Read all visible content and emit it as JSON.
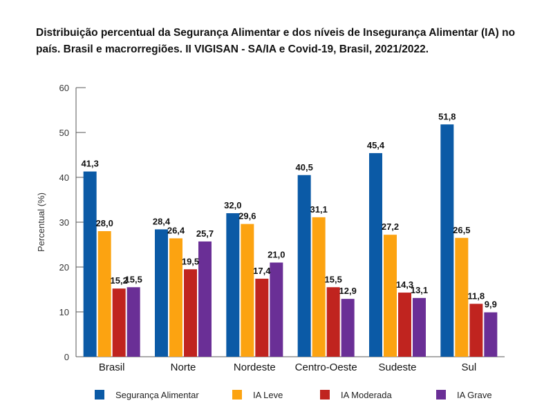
{
  "chart_data": {
    "type": "bar",
    "title": "Distribuição percentual da Segurança Alimentar e dos níveis de Insegurança Alimentar (IA) no país. Brasil e macrorregiões. II VIGISAN - SA/IA e Covid-19, Brasil, 2021/2022.",
    "xlabel": "",
    "ylabel": "Percentual (%)",
    "ylim": [
      0,
      60
    ],
    "yticks": [
      "0",
      "10",
      "20",
      "30",
      "40",
      "50",
      "60"
    ],
    "grid": false,
    "legend_position": "bottom",
    "categories": [
      "Brasil",
      "Norte",
      "Nordeste",
      "Centro-Oeste",
      "Sudeste",
      "Sul"
    ],
    "series": [
      {
        "name": "Segurança Alimentar",
        "color": "#0b5aa6",
        "values": [
          41.3,
          28.4,
          32.0,
          40.5,
          45.4,
          51.8
        ],
        "labels": [
          "41,3",
          "28,4",
          "32,0",
          "40,5",
          "45,4",
          "51,8"
        ]
      },
      {
        "name": "IA Leve",
        "color": "#fca311",
        "values": [
          28.0,
          26.4,
          29.6,
          31.1,
          27.2,
          26.5
        ],
        "labels": [
          "28,0",
          "26,4",
          "29,6",
          "31,1",
          "27,2",
          "26,5"
        ]
      },
      {
        "name": "IA Moderada",
        "color": "#c0241f",
        "values": [
          15.2,
          19.5,
          17.4,
          15.5,
          14.3,
          11.8
        ],
        "labels": [
          "15,2",
          "19,5",
          "17,4",
          "15,5",
          "14,3",
          "11,8"
        ]
      },
      {
        "name": "IA Grave",
        "color": "#6a2f96",
        "values": [
          15.5,
          25.7,
          21.0,
          12.9,
          13.1,
          9.9
        ],
        "labels": [
          "15,5",
          "25,7",
          "21,0",
          "12,9",
          "13,1",
          "9,9"
        ]
      }
    ]
  }
}
